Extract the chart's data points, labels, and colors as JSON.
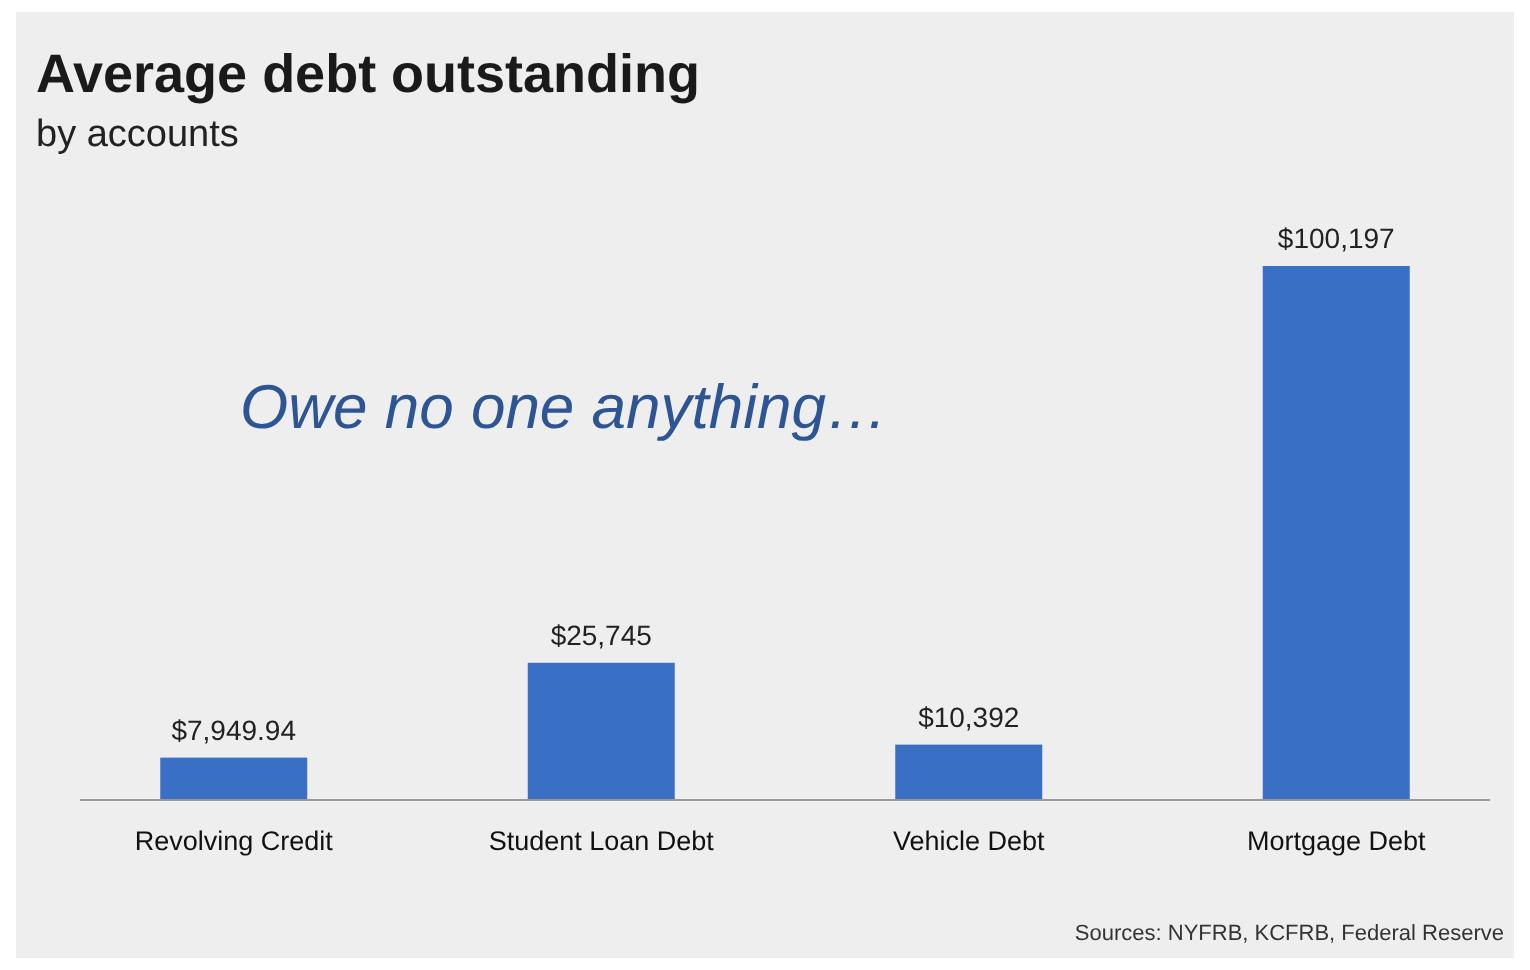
{
  "chart_data": {
    "type": "bar",
    "title": "Average debt outstanding",
    "subtitle": "by accounts",
    "categories": [
      "Revolving Credit",
      "Student Loan Debt",
      "Vehicle Debt",
      "Mortgage Debt"
    ],
    "values": [
      7949.94,
      25745,
      10392,
      100197
    ],
    "value_labels": [
      "$7,949.94",
      "$25,745",
      "$10,392",
      "$100,197"
    ],
    "color": "#3a6fc6",
    "annotations": [
      "Owe no one anything…",
      "Sources: NYFRB, KCFRB, Federal Reserve"
    ]
  }
}
